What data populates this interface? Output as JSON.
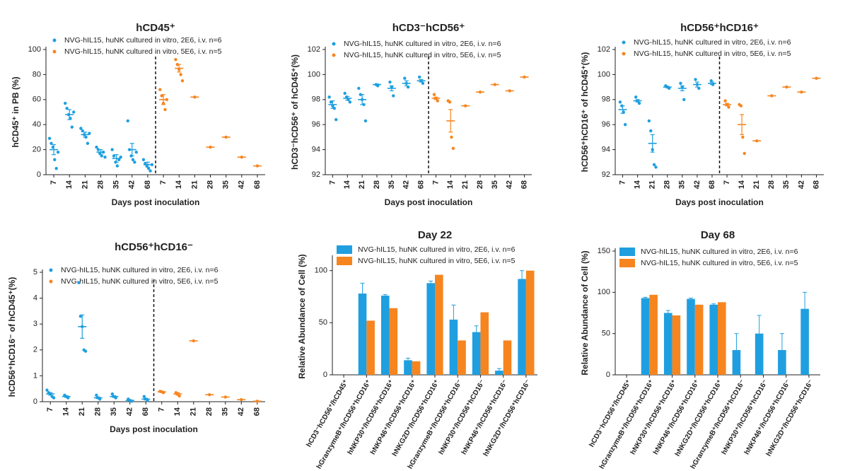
{
  "chart_data": [
    {
      "type": "dotplot",
      "title": "hCD45⁺",
      "ylabel": "hCD45⁺ in PB (%)",
      "xlabel": "Days post inoculation",
      "categories": [
        "7",
        "14",
        "21",
        "28",
        "35",
        "42",
        "68",
        "7",
        "14",
        "21",
        "28",
        "35",
        "42",
        "68"
      ],
      "ylim": [
        0,
        100
      ],
      "yticks": [
        0,
        20,
        40,
        60,
        80,
        100
      ],
      "series": [
        {
          "name": "NVG-hIL15, huNK cultured in vitro, 2E6, i.v. n=6",
          "color": "#1f9fe0",
          "values": [
            20,
            48,
            32,
            18,
            13,
            20,
            8,
            null,
            null,
            null,
            null,
            null,
            null,
            null
          ],
          "errors": [
            4,
            4,
            2,
            2,
            3,
            5,
            2,
            null,
            null,
            null,
            null,
            null,
            null,
            null
          ],
          "points": [
            [
              29,
              25,
              22,
              12,
              5,
              18
            ],
            [
              57,
              53,
              48,
              45,
              38,
              50
            ],
            [
              37,
              35,
              32,
              30,
              25,
              33
            ],
            [
              22,
              20,
              17,
              15,
              18,
              14
            ],
            [
              20,
              15,
              10,
              7,
              12,
              14
            ],
            [
              43,
              20,
              15,
              12,
              10,
              18
            ],
            [
              12,
              9,
              7,
              5,
              3,
              8
            ],
            null,
            null,
            null,
            null,
            null,
            null,
            null
          ]
        },
        {
          "name": "NVG-hIL15, huNK cultured in vitro, 5E6, i.v. n=5",
          "color": "#f7851f",
          "values": [
            null,
            null,
            null,
            null,
            null,
            null,
            null,
            60,
            85,
            62,
            22,
            30,
            14,
            7
          ],
          "errors": [
            null,
            null,
            null,
            null,
            null,
            null,
            null,
            4,
            3,
            null,
            null,
            null,
            null,
            null
          ],
          "points": [
            null,
            null,
            null,
            null,
            null,
            null,
            null,
            [
              68,
              63,
              57,
              52,
              60
            ],
            [
              92,
              88,
              84,
              80,
              75
            ],
            [
              62
            ],
            [
              22
            ],
            [
              30
            ],
            [
              14
            ],
            [
              7
            ]
          ]
        }
      ]
    },
    {
      "type": "dotplot",
      "title": "hCD3⁻hCD56⁺",
      "ylabel": "hCD3⁻hCD56⁺ of hCD45⁺(%)",
      "xlabel": "Days post inoculation",
      "categories": [
        "7",
        "14",
        "21",
        "28",
        "35",
        "42",
        "68",
        "7",
        "14",
        "21",
        "28",
        "35",
        "42",
        "68"
      ],
      "ylim": [
        92,
        102
      ],
      "yticks": [
        92,
        94,
        96,
        98,
        100,
        102
      ],
      "series": [
        {
          "name": "NVG-hIL15, huNK cultured in vitro, 2E6, i.v. n=6",
          "color": "#1f9fe0",
          "values": [
            97.6,
            98.1,
            98.0,
            99.2,
            98.9,
            99.3,
            99.5,
            null,
            null,
            null,
            null,
            null,
            null,
            null
          ],
          "errors": [
            0.3,
            0.15,
            0.4,
            0.05,
            0.2,
            0.2,
            0.1,
            null,
            null,
            null,
            null,
            null,
            null,
            null
          ],
          "points": [
            [
              98.2,
              97.8,
              97.5,
              97.3,
              96.4
            ],
            [
              98.5,
              98.2,
              98.0,
              97.8
            ],
            [
              98.9,
              98.4,
              98.0,
              97.6,
              96.3
            ],
            [
              99.2,
              99.1
            ],
            [
              99.4,
              99.0,
              98.3
            ],
            [
              99.7,
              99.3,
              99.0
            ],
            [
              99.8,
              99.5,
              99.3
            ],
            null,
            null,
            null,
            null,
            null,
            null,
            null
          ]
        },
        {
          "name": "NVG-hIL15, huNK cultured in vitro, 5E6, i.v. n=5",
          "color": "#f7851f",
          "values": [
            null,
            null,
            null,
            null,
            null,
            null,
            null,
            98.1,
            96.3,
            97.5,
            98.6,
            99.2,
            98.7,
            99.8
          ],
          "errors": [
            null,
            null,
            null,
            null,
            null,
            null,
            null,
            0.1,
            0.9,
            null,
            null,
            null,
            null,
            null
          ],
          "points": [
            null,
            null,
            null,
            null,
            null,
            null,
            null,
            [
              98.4,
              98.1,
              97.9
            ],
            [
              97.9,
              97.8,
              95.0,
              94.1
            ],
            [
              97.5
            ],
            [
              98.6
            ],
            [
              99.2
            ],
            [
              98.7
            ],
            [
              99.8
            ]
          ]
        }
      ]
    },
    {
      "type": "dotplot",
      "title": "hCD56⁺hCD16⁺",
      "ylabel": "hCD56⁺hCD16⁺ of hCD45⁺(%)",
      "xlabel": "Days post inoculation",
      "categories": [
        "7",
        "14",
        "21",
        "28",
        "35",
        "42",
        "68",
        "7",
        "14",
        "21",
        "28",
        "35",
        "42",
        "68"
      ],
      "ylim": [
        92,
        102
      ],
      "yticks": [
        92,
        94,
        96,
        98,
        100,
        102
      ],
      "series": [
        {
          "name": "NVG-hIL15, huNK cultured in vitro, 2E6, i.v. n=6",
          "color": "#1f9fe0",
          "values": [
            97.2,
            97.9,
            94.5,
            99.0,
            98.9,
            99.2,
            99.3,
            null,
            null,
            null,
            null,
            null,
            null,
            null
          ],
          "errors": [
            0.3,
            0.1,
            0.7,
            0.05,
            0.2,
            0.2,
            0.1,
            null,
            null,
            null,
            null,
            null,
            null,
            null
          ],
          "points": [
            [
              97.8,
              97.5,
              97.0,
              96.0
            ],
            [
              98.2,
              97.9,
              97.7
            ],
            [
              96.3,
              95.5,
              94.0,
              92.8,
              92.6
            ],
            [
              99.1,
              99.0,
              98.9
            ],
            [
              99.3,
              99.0,
              98.0
            ],
            [
              99.6,
              99.2,
              98.9
            ],
            [
              99.5,
              99.2
            ],
            null,
            null,
            null,
            null,
            null,
            null,
            null
          ]
        },
        {
          "name": "NVG-hIL15, huNK cultured in vitro, 5E6, i.v. n=5",
          "color": "#f7851f",
          "values": [
            null,
            null,
            null,
            null,
            null,
            null,
            null,
            97.6,
            96.0,
            94.7,
            98.3,
            99.0,
            98.6,
            99.7
          ],
          "errors": [
            null,
            null,
            null,
            null,
            null,
            null,
            null,
            0.1,
            0.8,
            null,
            null,
            null,
            null,
            null
          ],
          "points": [
            null,
            null,
            null,
            null,
            null,
            null,
            null,
            [
              97.9,
              97.6,
              97.4
            ],
            [
              97.6,
              97.5,
              95.0,
              93.7
            ],
            [
              94.7
            ],
            [
              98.3
            ],
            [
              99.0
            ],
            [
              98.6
            ],
            [
              99.7
            ]
          ]
        }
      ]
    },
    {
      "type": "dotplot",
      "title": "hCD56⁺hCD16⁻",
      "ylabel": "hCD56⁺hCD16⁻ of hCD45⁺(%)",
      "xlabel": "Days post inoculation",
      "categories": [
        "7",
        "14",
        "21",
        "28",
        "35",
        "42",
        "68",
        "7",
        "14",
        "21",
        "28",
        "35",
        "42",
        "68"
      ],
      "ylim": [
        0,
        5
      ],
      "yticks": [
        0,
        1,
        2,
        3,
        4,
        5
      ],
      "series": [
        {
          "name": "NVG-hIL15, huNK cultured in vitro, 2E6, i.v. n=6",
          "color": "#1f9fe0",
          "values": [
            0.3,
            0.2,
            2.9,
            0.15,
            0.2,
            0.05,
            0.1,
            null,
            null,
            null,
            null,
            null,
            null,
            null
          ],
          "errors": [
            0.05,
            0.03,
            0.45,
            0.03,
            0.03,
            0.02,
            0.03,
            null,
            null,
            null,
            null,
            null,
            null,
            null
          ],
          "points": [
            [
              0.45,
              0.35,
              0.3,
              0.2,
              0.15
            ],
            [
              0.25,
              0.2,
              0.15
            ],
            [
              4.6,
              3.3,
              2.9,
              2.0,
              1.95
            ],
            [
              0.25,
              0.15,
              0.1
            ],
            [
              0.3,
              0.2,
              0.15
            ],
            [
              0.1,
              0.05,
              0.02
            ],
            [
              0.2,
              0.1,
              0.05
            ],
            null,
            null,
            null,
            null,
            null,
            null,
            null
          ]
        },
        {
          "name": "NVG-hIL15, huNK cultured in vitro, 5E6, i.v. n=5",
          "color": "#f7851f",
          "values": [
            null,
            null,
            null,
            null,
            null,
            null,
            null,
            0.38,
            0.3,
            2.35,
            0.27,
            0.18,
            0.08,
            0.02
          ],
          "errors": [
            null,
            null,
            null,
            null,
            null,
            null,
            null,
            0.02,
            0.05,
            null,
            null,
            null,
            null,
            null
          ],
          "points": [
            null,
            null,
            null,
            null,
            null,
            null,
            null,
            [
              0.4,
              0.38,
              0.35
            ],
            [
              0.35,
              0.3,
              0.22
            ],
            [
              2.35
            ],
            [
              0.27
            ],
            [
              0.18
            ],
            [
              0.08
            ],
            [
              0.02
            ]
          ]
        }
      ]
    },
    {
      "type": "bar",
      "title": "Day 22",
      "ylabel": "Relative Abundance of Cell (%)",
      "categories": [
        "hCD3⁻hCD56⁺/hCD45⁺",
        "hGranzymeB⁺/hCD56⁺hCD16⁺",
        "hNKP30⁺/hCD56⁺hCD16⁺",
        "hNKP46⁺/hCD56⁺hCD16⁺",
        "hNKG2D⁺/hCD56⁺hCD16⁺",
        "hGranzymeB⁺/hCD56⁺hCD16⁻",
        "hNKP30⁺/hCD56⁺hCD16⁻",
        "hNKP46⁺/hCD56⁺hCD16⁻",
        "hNKG2D⁺/hCD56⁺hCD16⁻"
      ],
      "ylim": [
        0,
        112
      ],
      "yticks": [
        0,
        50,
        100
      ],
      "series": [
        {
          "name": "NVG-hIL15, huNK cultured in vitro, 2E6, i.v. n=6",
          "color": "#1f9fe0",
          "values": [
            0,
            78,
            76,
            14,
            88,
            53,
            41,
            4,
            92
          ],
          "errors": [
            0,
            10,
            1,
            2,
            2,
            14,
            6,
            2,
            8
          ]
        },
        {
          "name": "NVG-hIL15, huNK cultured in vitro, 5E6, i.v. n=5",
          "color": "#f7851f",
          "values": [
            0,
            52,
            64,
            13,
            96,
            33,
            60,
            33,
            100
          ],
          "errors": [
            null,
            null,
            null,
            null,
            null,
            null,
            null,
            null,
            null
          ]
        }
      ]
    },
    {
      "type": "bar",
      "title": "Day 68",
      "ylabel": "Relative Abundance of Cell (%)",
      "categories": [
        "hCD3⁻hCD56⁺/hCD45⁺",
        "hGranzymeB⁺/hCD56⁺hCD16⁺",
        "hNKP30⁺/hCD56⁺hCD16⁺",
        "hNKP46⁺/hCD56⁺hCD16⁺",
        "hNKG2D⁺/hCD56⁺hCD16⁺",
        "hGranzymeB⁺/hCD56⁺hCD16⁻",
        "hNKP30⁺/hCD56⁺hCD16⁻",
        "hNKP46⁺/hCD56⁺hCD16⁻",
        "hNKG2D⁺/hCD56⁺hCD16⁻"
      ],
      "ylim": [
        0,
        150
      ],
      "yticks": [
        0,
        50,
        100,
        150
      ],
      "series": [
        {
          "name": "NVG-hIL15, huNK cultured in vitro, 2E6, i.v. n=6",
          "color": "#1f9fe0",
          "values": [
            0,
            93,
            75,
            92,
            85,
            30,
            50,
            30,
            80
          ],
          "errors": [
            0,
            1,
            3,
            1,
            1,
            20,
            22,
            20,
            20
          ]
        },
        {
          "name": "NVG-hIL15, huNK cultured in vitro, 5E6, i.v. n=5",
          "color": "#f7851f",
          "values": [
            0,
            97,
            72,
            85,
            88,
            null,
            null,
            null,
            null
          ],
          "errors": [
            null,
            null,
            null,
            null,
            null,
            null,
            null,
            null,
            null
          ]
        }
      ]
    }
  ]
}
